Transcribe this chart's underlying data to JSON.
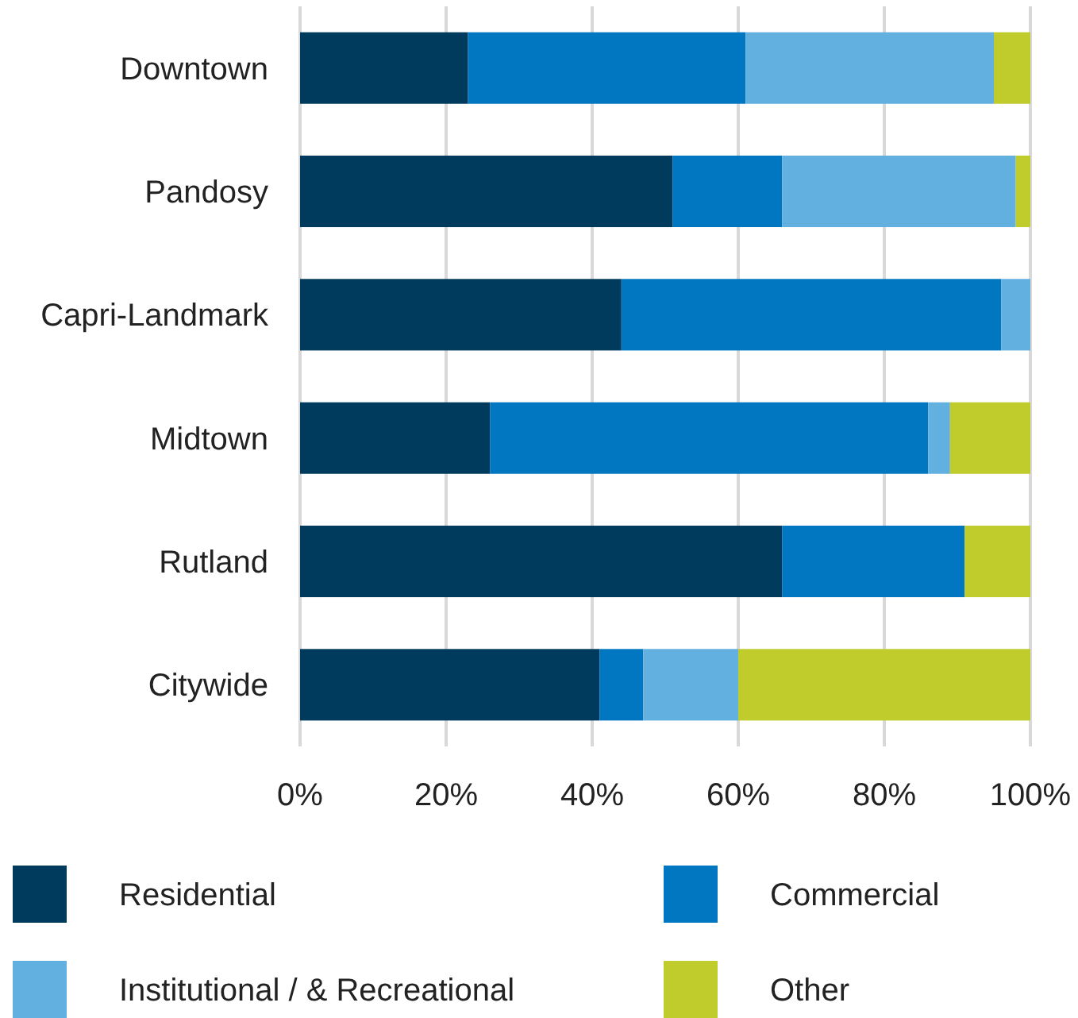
{
  "chart_data": {
    "type": "bar",
    "orientation": "horizontal",
    "stacked": true,
    "categories": [
      "Downtown",
      "Pandosy",
      "Capri-Landmark",
      "Midtown",
      "Rutland",
      "Citywide"
    ],
    "series": [
      {
        "name": "Residential",
        "color": "#003a5c",
        "values": [
          23,
          51,
          44,
          26,
          66,
          41
        ]
      },
      {
        "name": "Commercial",
        "color": "#0077c0",
        "values": [
          38,
          15,
          52,
          60,
          25,
          6
        ]
      },
      {
        "name": "Institutional / & Recreational",
        "color": "#62b0e0",
        "values": [
          34,
          32,
          4,
          3,
          0,
          13
        ]
      },
      {
        "name": "Other",
        "color": "#bfcc2b",
        "values": [
          5,
          2,
          0,
          11,
          9,
          40
        ]
      }
    ],
    "xlim": [
      0,
      100
    ],
    "xticks": [
      {
        "value": 0,
        "label": "0%"
      },
      {
        "value": 20,
        "label": "20%"
      },
      {
        "value": 40,
        "label": "40%"
      },
      {
        "value": 60,
        "label": "60%"
      },
      {
        "value": 80,
        "label": "80%"
      },
      {
        "value": 100,
        "label": "100%"
      }
    ],
    "grid": "x",
    "legend": "bottom"
  }
}
